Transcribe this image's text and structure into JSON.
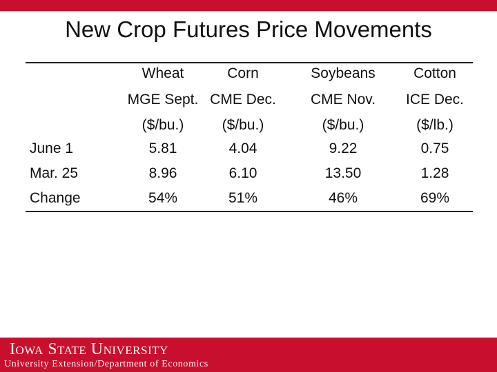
{
  "header": {
    "title": "New Crop Futures Price Movements"
  },
  "table": {
    "columns": [
      {
        "name": "Wheat",
        "exchange": "MGE Sept.",
        "unit": "($/bu.)"
      },
      {
        "name": "Corn",
        "exchange": "CME Dec.",
        "unit": "($/bu.)"
      },
      {
        "name": "Soybeans",
        "exchange": "CME Nov.",
        "unit": "($/bu.)"
      },
      {
        "name": "Cotton",
        "exchange": "ICE Dec.",
        "unit": "($/lb.)"
      }
    ],
    "rows": [
      {
        "label": "June 1",
        "values": [
          "5.81",
          "4.04",
          "9.22",
          "0.75"
        ]
      },
      {
        "label": "Mar. 25",
        "values": [
          "8.96",
          "6.10",
          "13.50",
          "1.28"
        ]
      },
      {
        "label": "Change",
        "values": [
          "54%",
          "51%",
          "46%",
          "69%"
        ]
      }
    ]
  },
  "footer": {
    "logo": "Iowa State University",
    "department": "University Extension/Department of Economics"
  }
}
